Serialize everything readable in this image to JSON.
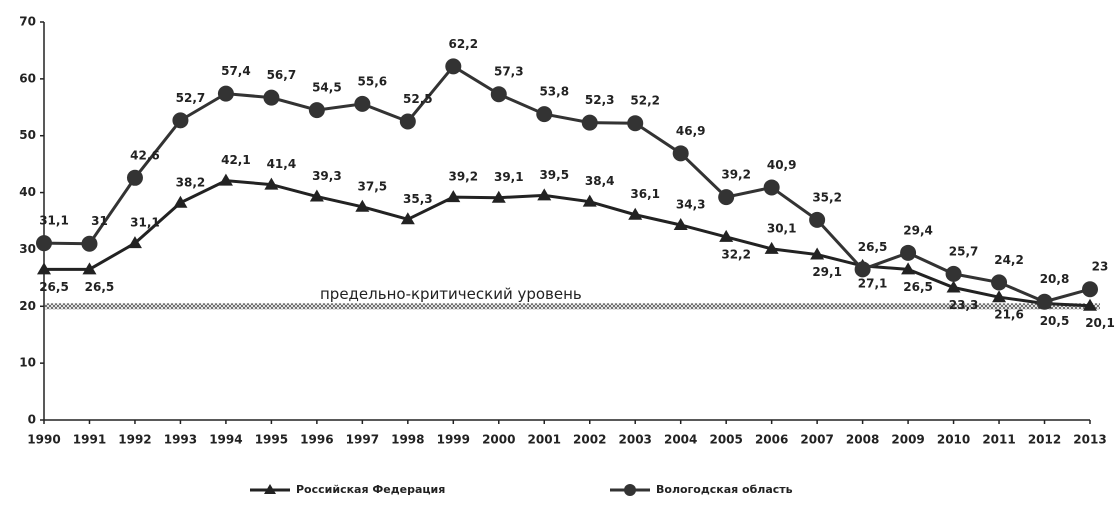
{
  "chart_data": {
    "type": "line",
    "categories": [
      "1990",
      "1991",
      "1992",
      "1993",
      "1994",
      "1995",
      "1996",
      "1997",
      "1998",
      "1999",
      "2000",
      "2001",
      "2002",
      "2003",
      "2004",
      "2005",
      "2006",
      "2007",
      "2008",
      "2009",
      "2010",
      "2011",
      "2012",
      "2013"
    ],
    "series": [
      {
        "name": "Российская Федерация",
        "color": "#222222",
        "marker": "triangle",
        "values": [
          26.5,
          26.5,
          31.1,
          38.2,
          42.1,
          41.4,
          39.3,
          37.5,
          35.3,
          39.2,
          39.1,
          39.5,
          38.4,
          36.1,
          34.3,
          32.2,
          30.1,
          29.1,
          27.1,
          26.5,
          23.3,
          21.6,
          20.5,
          20.1
        ],
        "value_labels": [
          "26,5",
          "26,5",
          "31,1",
          "38,2",
          "42,1",
          "41,4",
          "39,3",
          "37,5",
          "35,3",
          "39,2",
          "39,1",
          "39,5",
          "38,4",
          "36,1",
          "34,3",
          "32,2",
          "30,1",
          "29,1",
          "27,1",
          "26,5",
          "23,3",
          "21,6",
          "20,5",
          "20,1"
        ]
      },
      {
        "name": "Вологодская область",
        "color": "#333333",
        "marker": "circle",
        "values": [
          31.1,
          31,
          42.6,
          52.7,
          57.4,
          56.7,
          54.5,
          55.6,
          52.5,
          62.2,
          57.3,
          53.8,
          52.3,
          52.2,
          46.9,
          39.2,
          40.9,
          35.2,
          26.5,
          29.4,
          25.7,
          24.2,
          20.8,
          23
        ],
        "value_labels": [
          "31,1",
          "31",
          "42,6",
          "52,7",
          "57,4",
          "56,7",
          "54,5",
          "55,6",
          "52,5",
          "62,2",
          "57,3",
          "53,8",
          "52,3",
          "52,2",
          "46,9",
          "39,2",
          "40,9",
          "35,2",
          "26,5",
          "29,4",
          "25,7",
          "24,2",
          "20,8",
          "23"
        ]
      }
    ],
    "reference_line": {
      "value": 20,
      "label": "предельно-критический уровень"
    },
    "ylim": [
      0,
      70
    ],
    "yticks": [
      0,
      10,
      20,
      30,
      40,
      50,
      60,
      70
    ],
    "legend": "bottom"
  }
}
